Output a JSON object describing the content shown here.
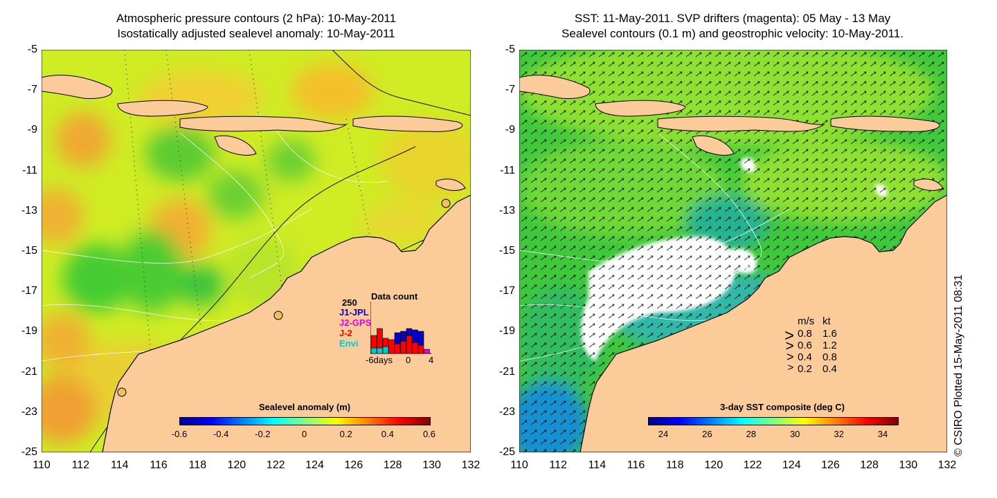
{
  "left_panel": {
    "title_line1": "Atmospheric pressure contours (2 hPa): 10-May-2011",
    "title_line2": "Isostatically adjusted sealevel anomaly: 10-May-2011",
    "y_ticks": [
      "-5",
      "-7",
      "-9",
      "-11",
      "-13",
      "-15",
      "-17",
      "-19",
      "-21",
      "-23",
      "-25"
    ],
    "x_ticks": [
      "110",
      "112",
      "114",
      "116",
      "118",
      "120",
      "122",
      "124",
      "126",
      "128",
      "130",
      "132"
    ],
    "colorbar": {
      "label": "Sealevel anomaly (m)",
      "ticks": [
        "-0.6",
        "-0.4",
        "-0.2",
        "0",
        "0.2",
        "0.4",
        "0.6"
      ]
    },
    "inset": {
      "title": "Data count",
      "max_label": "250",
      "series": [
        {
          "name": "J1-JPL",
          "color": "#0000cc"
        },
        {
          "name": "J2-GPS",
          "color": "#e000e0"
        },
        {
          "name": "J-2",
          "color": "#ff0000"
        },
        {
          "name": "Envi",
          "color": "#00cccc"
        }
      ],
      "x_left_label": "-6days",
      "x_mid_label": "0",
      "x_right_label": "4"
    }
  },
  "right_panel": {
    "title_line1": "SST: 11-May-2011. SVP drifters (magenta): 05 May - 13 May",
    "title_line2": "Sealevel contours (0.1 m) and geostrophic velocity: 10-May-2011.",
    "y_ticks": [
      "-5",
      "-7",
      "-9",
      "-11",
      "-13",
      "-15",
      "-17",
      "-19",
      "-21",
      "-23",
      "-25"
    ],
    "x_ticks": [
      "110",
      "112",
      "114",
      "116",
      "118",
      "120",
      "122",
      "124",
      "126",
      "128",
      "130",
      "132"
    ],
    "colorbar": {
      "label": "3-day SST composite (deg C)",
      "ticks": [
        "24",
        "26",
        "28",
        "30",
        "32",
        "34"
      ]
    },
    "velocity_legend": {
      "header_ms": "m/s",
      "header_kt": "kt",
      "rows": [
        {
          "ms": "0.8",
          "kt": "1.6"
        },
        {
          "ms": "0.6",
          "kt": "1.2"
        },
        {
          "ms": "0.4",
          "kt": "0.8"
        },
        {
          "ms": "0.2",
          "kt": "0.4"
        }
      ]
    }
  },
  "credit": "© CSIRO Plotted 15-May-2011 08:31",
  "colors": {
    "land": "#fccb9a",
    "sea_green": "#9be02a",
    "sea_yellow": "#d8ee20",
    "sst_green": "#3cc83c",
    "cloud": "#ffffff"
  }
}
